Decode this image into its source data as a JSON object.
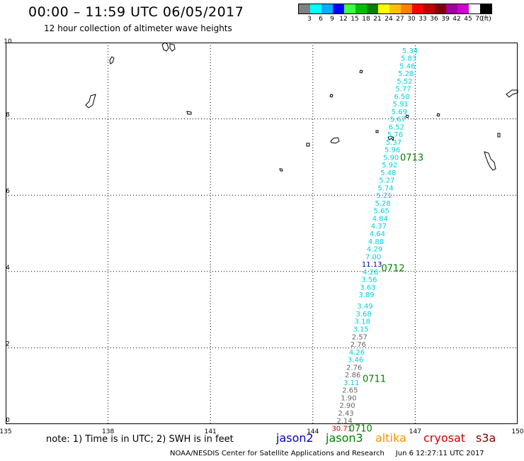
{
  "header": {
    "title": "00:00 – 11:59 UTC 06/05/2017",
    "subtitle": "12 hour collection of altimeter wave heights"
  },
  "legend": {
    "colors": [
      "#808080",
      "#00ffff",
      "#00b0ff",
      "#0000ff",
      "#40ff40",
      "#00c000",
      "#008000",
      "#ffff00",
      "#ffc000",
      "#ff8000",
      "#ff0000",
      "#c00000",
      "#800000",
      "#a000a0",
      "#d000d0",
      "#ffffff",
      "#000000"
    ],
    "labels": [
      "3",
      "6",
      "9",
      "12",
      "15",
      "18",
      "21",
      "24",
      "27",
      "30",
      "33",
      "36",
      "39",
      "42",
      "45",
      "70",
      "(ft)"
    ]
  },
  "map": {
    "x_ticks": [
      "135",
      "138",
      "141",
      "144",
      "147",
      "150"
    ],
    "y_ticks": [
      "0",
      "2",
      "4",
      "6",
      "8",
      "10"
    ],
    "lon_range": [
      135,
      150
    ],
    "lat_range": [
      0,
      10
    ],
    "track_colors": {
      "gray": "#666666",
      "cyan": "#00d0e0",
      "blue": "#0000a0",
      "red": "#d00000",
      "time": "#008000"
    },
    "measurements": [
      {
        "lon": 146.85,
        "lat": 9.8,
        "text": "5.34",
        "color": "cyan"
      },
      {
        "lon": 146.81,
        "lat": 9.6,
        "text": "5.83",
        "color": "cyan"
      },
      {
        "lon": 146.77,
        "lat": 9.4,
        "text": "5.46",
        "color": "cyan"
      },
      {
        "lon": 146.73,
        "lat": 9.2,
        "text": "5.28",
        "color": "cyan"
      },
      {
        "lon": 146.69,
        "lat": 9.0,
        "text": "5.52",
        "color": "cyan"
      },
      {
        "lon": 146.65,
        "lat": 8.8,
        "text": "5.77",
        "color": "cyan"
      },
      {
        "lon": 146.61,
        "lat": 8.6,
        "text": "6.50",
        "color": "cyan"
      },
      {
        "lon": 146.57,
        "lat": 8.4,
        "text": "5.91",
        "color": "cyan"
      },
      {
        "lon": 146.53,
        "lat": 8.2,
        "text": "5.69",
        "color": "cyan"
      },
      {
        "lon": 146.49,
        "lat": 8.0,
        "text": "5.67",
        "color": "cyan"
      },
      {
        "lon": 146.45,
        "lat": 7.8,
        "text": "6.52",
        "color": "cyan"
      },
      {
        "lon": 146.41,
        "lat": 7.6,
        "text": "5.76",
        "color": "cyan"
      },
      {
        "lon": 146.37,
        "lat": 7.4,
        "text": "5.37",
        "color": "cyan"
      },
      {
        "lon": 146.33,
        "lat": 7.2,
        "text": "5.96",
        "color": "cyan"
      },
      {
        "lon": 146.29,
        "lat": 7.0,
        "text": "5.90",
        "color": "cyan"
      },
      {
        "lon": 146.25,
        "lat": 6.8,
        "text": "5.92",
        "color": "cyan"
      },
      {
        "lon": 146.21,
        "lat": 6.6,
        "text": "5.48",
        "color": "cyan"
      },
      {
        "lon": 146.17,
        "lat": 6.4,
        "text": "5.27",
        "color": "cyan"
      },
      {
        "lon": 146.13,
        "lat": 6.2,
        "text": "5.74",
        "color": "cyan"
      },
      {
        "lon": 146.09,
        "lat": 6.0,
        "text": "5.21",
        "color": "cyan"
      },
      {
        "lon": 146.05,
        "lat": 5.8,
        "text": "5.28",
        "color": "cyan"
      },
      {
        "lon": 146.01,
        "lat": 5.6,
        "text": "5.65",
        "color": "cyan"
      },
      {
        "lon": 145.97,
        "lat": 5.4,
        "text": "4.84",
        "color": "cyan"
      },
      {
        "lon": 145.93,
        "lat": 5.2,
        "text": "4.37",
        "color": "cyan"
      },
      {
        "lon": 145.89,
        "lat": 5.0,
        "text": "4.64",
        "color": "cyan"
      },
      {
        "lon": 145.85,
        "lat": 4.8,
        "text": "4.88",
        "color": "cyan"
      },
      {
        "lon": 145.81,
        "lat": 4.6,
        "text": "4.29",
        "color": "cyan"
      },
      {
        "lon": 145.77,
        "lat": 4.4,
        "text": "7.00",
        "color": "cyan"
      },
      {
        "lon": 145.73,
        "lat": 4.2,
        "text": "11.13",
        "color": "blue"
      },
      {
        "lon": 145.69,
        "lat": 4.0,
        "text": "4.26",
        "color": "cyan"
      },
      {
        "lon": 145.65,
        "lat": 3.8,
        "text": "3.56",
        "color": "cyan"
      },
      {
        "lon": 145.61,
        "lat": 3.6,
        "text": "3.63",
        "color": "cyan"
      },
      {
        "lon": 145.57,
        "lat": 3.4,
        "text": "3.89",
        "color": "cyan"
      },
      {
        "lon": 145.53,
        "lat": 3.1,
        "text": "3.49",
        "color": "cyan"
      },
      {
        "lon": 145.49,
        "lat": 2.9,
        "text": "3.68",
        "color": "cyan"
      },
      {
        "lon": 145.45,
        "lat": 2.7,
        "text": "3.18",
        "color": "cyan"
      },
      {
        "lon": 145.41,
        "lat": 2.5,
        "text": "3.15",
        "color": "cyan"
      },
      {
        "lon": 145.37,
        "lat": 2.3,
        "text": "2.57",
        "color": "gray"
      },
      {
        "lon": 145.33,
        "lat": 2.1,
        "text": "2.76",
        "color": "gray"
      },
      {
        "lon": 145.29,
        "lat": 1.9,
        "text": "4.26",
        "color": "cyan"
      },
      {
        "lon": 145.25,
        "lat": 1.7,
        "text": "3.46",
        "color": "cyan"
      },
      {
        "lon": 145.21,
        "lat": 1.5,
        "text": "2.76",
        "color": "gray"
      },
      {
        "lon": 145.17,
        "lat": 1.3,
        "text": "2.86",
        "color": "gray"
      },
      {
        "lon": 145.13,
        "lat": 1.1,
        "text": "3.11",
        "color": "cyan"
      },
      {
        "lon": 145.09,
        "lat": 0.9,
        "text": "2.65",
        "color": "gray"
      },
      {
        "lon": 145.05,
        "lat": 0.7,
        "text": "1.90",
        "color": "gray"
      },
      {
        "lon": 145.01,
        "lat": 0.5,
        "text": "2.90",
        "color": "gray"
      },
      {
        "lon": 144.97,
        "lat": 0.3,
        "text": "2.43",
        "color": "gray"
      },
      {
        "lon": 144.93,
        "lat": 0.1,
        "text": "2.14",
        "color": "gray"
      },
      {
        "lon": 144.85,
        "lat": -0.1,
        "text": "30.71",
        "color": "red"
      }
    ],
    "time_labels": [
      {
        "lon": 146.9,
        "lat": 7.0,
        "text": "0713"
      },
      {
        "lon": 146.35,
        "lat": 4.1,
        "text": "0712"
      },
      {
        "lon": 145.8,
        "lat": 1.2,
        "text": "0711"
      },
      {
        "lon": 145.4,
        "lat": -0.1,
        "text": "0710"
      }
    ]
  },
  "footer": {
    "note": "note:  1) Time is in UTC;  2) SWH is in feet",
    "satellites": [
      {
        "label": "jason2",
        "color": "#0000c0"
      },
      {
        "label": "jason3",
        "color": "#008000"
      },
      {
        "label": "altika",
        "color": "#ff9000"
      },
      {
        "label": "cryosat",
        "color": "#d00000"
      },
      {
        "label": "s3a",
        "color": "#800000"
      }
    ],
    "credit": "NOAA/NESDIS Center for Satellite Applications and Research",
    "timestamp": "Jun  6 12:27:11 UTC 2017"
  }
}
